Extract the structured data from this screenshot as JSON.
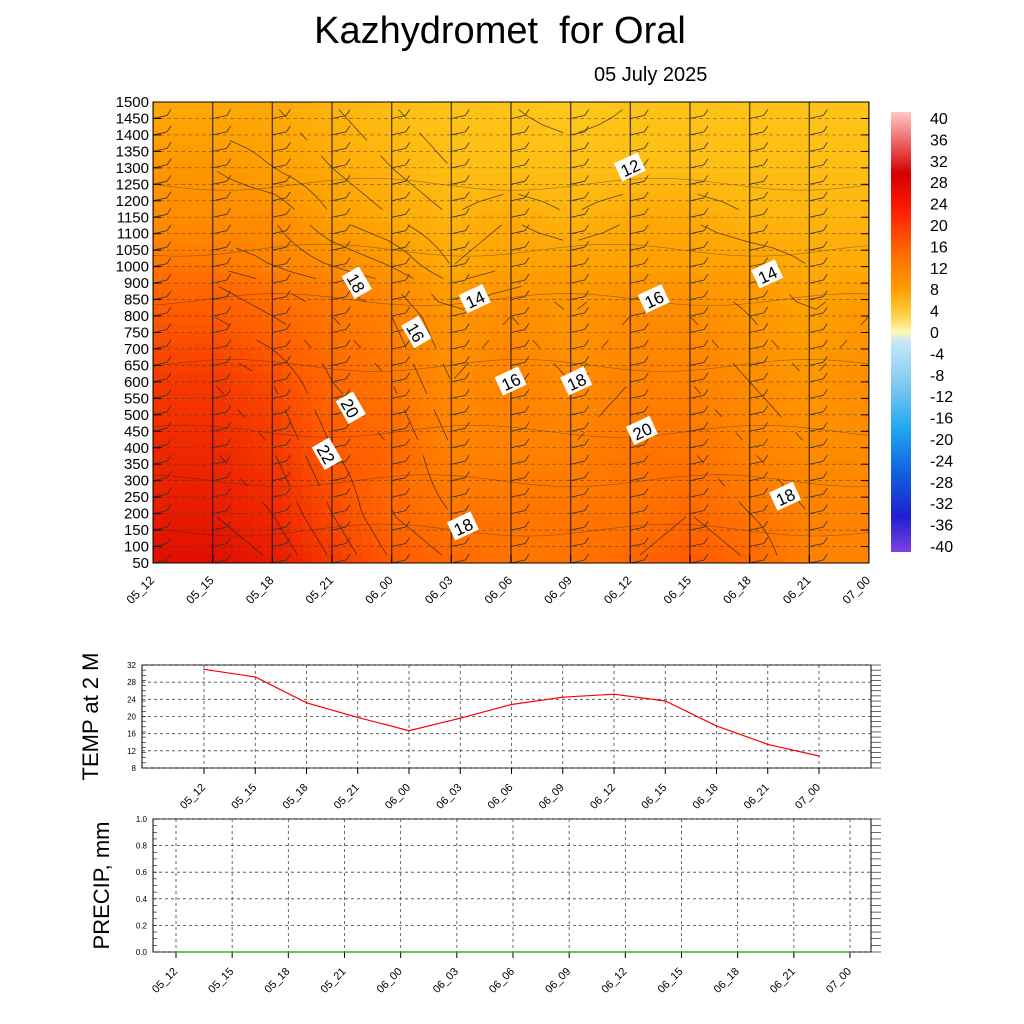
{
  "title": "Kazhydromet  for Oral",
  "subtitle": "05 July 2025",
  "chart_data": [
    {
      "type": "heatmap",
      "title": "Kazhydromet  for Oral",
      "subtitle": "05 July 2025",
      "xlabel": "",
      "ylabel": "",
      "x": [
        "05_12",
        "05_15",
        "05_18",
        "05_21",
        "06_00",
        "06_03",
        "06_06",
        "06_09",
        "06_12",
        "06_15",
        "06_18",
        "06_21",
        "07_00"
      ],
      "y": [
        50,
        100,
        150,
        200,
        250,
        300,
        350,
        400,
        450,
        500,
        550,
        600,
        650,
        700,
        750,
        800,
        850,
        900,
        1000,
        1050,
        1100,
        1150,
        1200,
        1250,
        1300,
        1350,
        1400,
        1450,
        1500
      ],
      "ylim": [
        50,
        1500
      ],
      "grid": true,
      "z_contour_labels": [
        "12",
        "14",
        "16",
        "18",
        "20",
        "22"
      ],
      "contour_labels": [
        {
          "text": "12",
          "x": 8.0,
          "y": 1300
        },
        {
          "text": "14",
          "x": 5.4,
          "y": 850
        },
        {
          "text": "14",
          "x": 10.3,
          "y": 950
        },
        {
          "text": "16",
          "x": 4.4,
          "y": 750
        },
        {
          "text": "16",
          "x": 8.4,
          "y": 850
        },
        {
          "text": "16",
          "x": 6.0,
          "y": 600
        },
        {
          "text": "18",
          "x": 3.4,
          "y": 900
        },
        {
          "text": "18",
          "x": 7.1,
          "y": 600
        },
        {
          "text": "18",
          "x": 5.2,
          "y": 160
        },
        {
          "text": "18",
          "x": 10.6,
          "y": 250
        },
        {
          "text": "20",
          "x": 3.3,
          "y": 520
        },
        {
          "text": "20",
          "x": 8.2,
          "y": 450
        },
        {
          "text": "22",
          "x": 2.9,
          "y": 380
        }
      ],
      "temperature_grid": [
        [
          27,
          27,
          26,
          24,
          22,
          21,
          20,
          20,
          21,
          22,
          21,
          19,
          19
        ],
        [
          26,
          26,
          25,
          23,
          21,
          20,
          20,
          20,
          20,
          21,
          20,
          19,
          19
        ],
        [
          25,
          25,
          24,
          22,
          21,
          19,
          19,
          19,
          20,
          20,
          19,
          18,
          18
        ],
        [
          24,
          24,
          23,
          21,
          20,
          18,
          19,
          18,
          19,
          19,
          18,
          17,
          18
        ],
        [
          22,
          22,
          21,
          20,
          19,
          17,
          18,
          17,
          18,
          18,
          17,
          16,
          17
        ],
        [
          20,
          20,
          19,
          18,
          17,
          15,
          16,
          16,
          16,
          16,
          16,
          15,
          15
        ],
        [
          18,
          18,
          18,
          16,
          15,
          14,
          15,
          14,
          15,
          15,
          14,
          14,
          14
        ],
        [
          17,
          17,
          16,
          15,
          14,
          13,
          13,
          13,
          13,
          13,
          13,
          13,
          13
        ],
        [
          15,
          15,
          15,
          14,
          13,
          12,
          12,
          11,
          12,
          12,
          12,
          12,
          12
        ]
      ],
      "temperature_grid_heights": [
        50,
        200,
        400,
        600,
        800,
        1000,
        1150,
        1300,
        1500
      ],
      "colorbar": {
        "labels": [
          "40",
          "36",
          "32",
          "28",
          "24",
          "20",
          "16",
          "12",
          "8",
          "4",
          "0",
          "-4",
          "-8",
          "-12",
          "-16",
          "-20",
          "-24",
          "-28",
          "-32",
          "-36",
          "-40"
        ],
        "values": [
          40,
          36,
          32,
          28,
          24,
          20,
          16,
          12,
          8,
          4,
          0,
          -4,
          -8,
          -12,
          -16,
          -20,
          -24,
          -28,
          -32,
          -36,
          -40
        ]
      },
      "colors": {
        "hot": "#e81400",
        "mid": "#ff8c00",
        "cool": "#ffc414",
        "contour": "#222222"
      }
    },
    {
      "type": "line",
      "ylabel": "TEMP at 2 M",
      "xlabel": "",
      "categories": [
        "05_12",
        "05_15",
        "05_18",
        "05_21",
        "06_00",
        "06_03",
        "06_06",
        "06_09",
        "06_12",
        "06_15",
        "06_18",
        "06_21",
        "07_00"
      ],
      "y_ticks": [
        "32",
        "28",
        "24",
        "20",
        "16",
        "12",
        "8"
      ],
      "ylim": [
        8,
        32
      ],
      "grid": true,
      "series": [
        {
          "values": [
            31,
            29.2,
            23.2,
            19.8,
            16.7,
            19.6,
            22.8,
            24.5,
            25.2,
            23.6,
            17.8,
            13.5,
            10.8
          ],
          "color": "#ff0000"
        }
      ]
    },
    {
      "type": "line",
      "ylabel": "PRECIP, mm",
      "xlabel": "",
      "categories": [
        "05_12",
        "05_15",
        "05_18",
        "05_21",
        "06_00",
        "06_03",
        "06_06",
        "06_09",
        "06_12",
        "06_15",
        "06_18",
        "06_21",
        "07_00"
      ],
      "y_ticks": [
        "1.0",
        "0.8",
        "0.6",
        "0.4",
        "0.2",
        "0.0"
      ],
      "ylim": [
        0,
        1
      ],
      "grid": true,
      "series": [
        {
          "values": [
            0,
            0,
            0,
            0,
            0,
            0,
            0,
            0,
            0,
            0,
            0,
            0,
            0
          ],
          "color": "#00aa00"
        }
      ]
    }
  ]
}
